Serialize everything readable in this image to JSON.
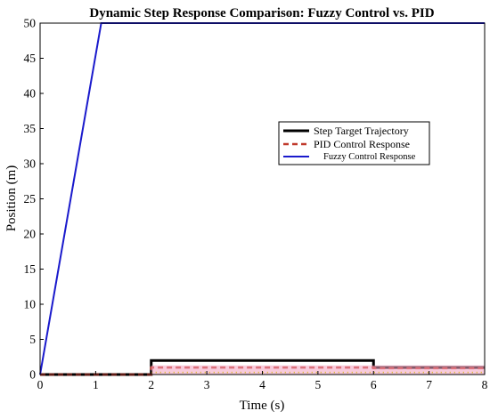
{
  "chart_data": {
    "type": "line",
    "title": "Dynamic Step Response Comparison: Fuzzy Control vs. PID",
    "xlabel": "Time (s)",
    "ylabel": "Position (m)",
    "xlim": [
      0,
      8
    ],
    "ylim": [
      0,
      50
    ],
    "xticks": [
      0,
      1,
      2,
      3,
      4,
      5,
      6,
      7,
      8
    ],
    "yticks": [
      0,
      5,
      10,
      15,
      20,
      25,
      30,
      35,
      40,
      45,
      50
    ],
    "grid": false,
    "legend_position": "center-right",
    "series": [
      {
        "name": "Step Target Trajectory",
        "color": "#000000",
        "style": "solid",
        "points": [
          [
            0,
            0
          ],
          [
            2,
            0
          ],
          [
            2,
            2
          ],
          [
            6,
            2
          ],
          [
            6,
            1
          ],
          [
            8,
            1
          ]
        ]
      },
      {
        "name": "PID Control Response",
        "color": "#c0392b",
        "style": "dashed",
        "points": [
          [
            0,
            0
          ],
          [
            2,
            0
          ],
          [
            2,
            1
          ],
          [
            6,
            1
          ],
          [
            6,
            0.9
          ],
          [
            8,
            0.9
          ]
        ]
      },
      {
        "name": "Fuzzy Control Response",
        "color": "#1a1acc",
        "style": "solid",
        "points": [
          [
            0,
            0
          ],
          [
            1.1,
            50
          ],
          [
            8,
            50
          ]
        ]
      }
    ]
  }
}
